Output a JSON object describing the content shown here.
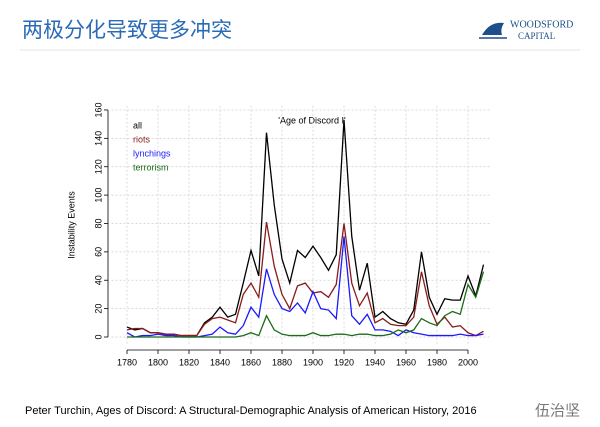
{
  "slide": {
    "title": "两极分化导致更多冲突",
    "logo_top": "WOODSFORD",
    "logo_bottom": "CAPITAL",
    "citation": "Peter Turchin, Ages of Discord: A Structural-Demographic Analysis of American History, 2016",
    "watermark": "伍治坚"
  },
  "chart_data": {
    "type": "line",
    "y_label": "Instability Events",
    "annotation": "'Age of Discord I'",
    "x": [
      1780,
      1785,
      1790,
      1795,
      1800,
      1805,
      1810,
      1815,
      1820,
      1825,
      1830,
      1835,
      1840,
      1845,
      1850,
      1855,
      1860,
      1865,
      1870,
      1875,
      1880,
      1885,
      1890,
      1895,
      1900,
      1905,
      1910,
      1915,
      1920,
      1925,
      1930,
      1935,
      1940,
      1945,
      1950,
      1955,
      1960,
      1965,
      1970,
      1975,
      1980,
      1985,
      1990,
      1995,
      2000,
      2005,
      2010
    ],
    "series": [
      {
        "name": "all",
        "color": "#000000",
        "values": [
          7,
          5,
          6,
          3,
          3,
          2,
          2,
          1,
          1,
          1,
          10,
          14,
          21,
          14,
          16,
          38,
          61,
          43,
          144,
          93,
          55,
          38,
          61,
          56,
          64,
          56,
          47,
          58,
          153,
          71,
          33,
          52,
          14,
          18,
          13,
          10,
          9,
          19,
          60,
          28,
          16,
          27,
          26,
          26,
          43,
          29,
          51
        ]
      },
      {
        "name": "riots",
        "color": "#8b1a1a",
        "values": [
          5,
          6,
          6,
          3,
          3,
          2,
          2,
          1,
          1,
          1,
          9,
          13,
          14,
          12,
          10,
          30,
          38,
          28,
          81,
          50,
          30,
          20,
          36,
          38,
          31,
          32,
          28,
          37,
          80,
          38,
          22,
          31,
          10,
          13,
          9,
          8,
          8,
          14,
          46,
          22,
          9,
          14,
          7,
          8,
          3,
          1,
          4
        ]
      },
      {
        "name": "lynchings",
        "color": "#1a1aff",
        "values": [
          3,
          0,
          1,
          1,
          2,
          1,
          1,
          0,
          0,
          0,
          1,
          2,
          7,
          3,
          2,
          8,
          21,
          14,
          48,
          30,
          20,
          18,
          24,
          17,
          32,
          20,
          19,
          13,
          71,
          15,
          9,
          16,
          5,
          5,
          4,
          1,
          5,
          3,
          2,
          1,
          1,
          1,
          1,
          2,
          1,
          1,
          2
        ]
      },
      {
        "name": "terrorism",
        "color": "#1a6b1a",
        "values": [
          0,
          0,
          0,
          0,
          0,
          0,
          0,
          0,
          0,
          0,
          0,
          0,
          0,
          0,
          0,
          1,
          3,
          1,
          15,
          5,
          2,
          1,
          1,
          1,
          3,
          1,
          1,
          2,
          2,
          1,
          2,
          2,
          1,
          1,
          2,
          5,
          3,
          5,
          13,
          10,
          8,
          15,
          18,
          16,
          37,
          28,
          46
        ]
      }
    ],
    "xlim": [
      1770,
      2014
    ],
    "ylim": [
      -5,
      163
    ],
    "xticks": [
      1780,
      1800,
      1820,
      1840,
      1860,
      1880,
      1900,
      1920,
      1940,
      1960,
      1980,
      2000
    ],
    "yticks": [
      0,
      20,
      40,
      60,
      80,
      100,
      120,
      140,
      160
    ],
    "grid": true,
    "legend": "top-left"
  }
}
